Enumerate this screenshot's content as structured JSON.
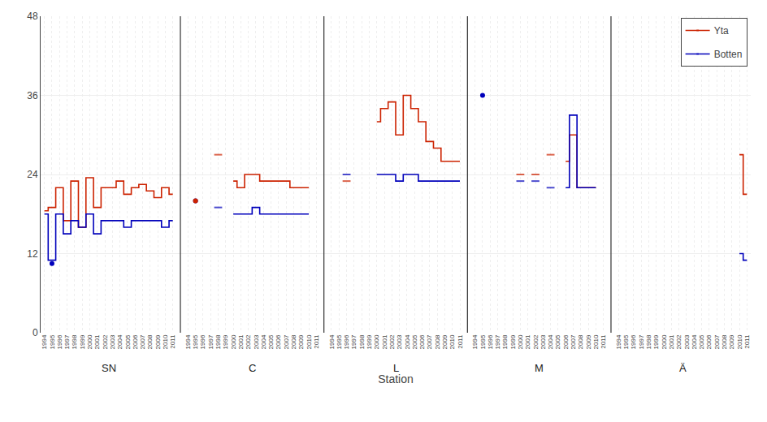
{
  "chart_data": {
    "type": "line",
    "xlabel": "Station",
    "groups": [
      "SN",
      "C",
      "L",
      "M",
      "Ä"
    ],
    "categories": [
      "1994",
      "1995",
      "1996",
      "1997",
      "1998",
      "1999",
      "2000",
      "2001",
      "2002",
      "2003",
      "2004",
      "2005",
      "2006",
      "2007",
      "2008",
      "2009",
      "2010",
      "2011",
      null,
      "1994",
      "1995",
      "1996",
      "1997",
      "1998",
      "1999",
      "2000",
      "2001",
      "2002",
      "2003",
      "2004",
      "2005",
      "2006",
      "2007",
      "2008",
      "2009",
      "2010",
      "2011",
      null,
      "1994",
      "1995",
      "1996",
      "1997",
      "1998",
      "1999",
      "2000",
      "2001",
      "2002",
      "2003",
      "2004",
      "2005",
      "2006",
      "2007",
      "2008",
      "2009",
      "2010",
      "2011",
      null,
      "1994",
      "1995",
      "1996",
      "1997",
      "1998",
      "1999",
      "2000",
      "2001",
      "2002",
      "2003",
      "2004",
      "2005",
      "2006",
      "2007",
      "2008",
      "2009",
      "2010",
      "2011",
      null,
      "1994",
      "1995",
      "1996",
      "1997",
      "1998",
      "1999",
      "2000",
      "2001",
      "2002",
      "2003",
      "2004",
      "2005",
      "2006",
      "2007",
      "2008",
      "2009",
      "2010",
      "2011"
    ],
    "series": [
      {
        "name": "Yta",
        "color": "#cc2200",
        "line_style": "step",
        "values": [
          18.5,
          19,
          22,
          17,
          23,
          16,
          23.5,
          19,
          22,
          22,
          23,
          21,
          22,
          22.5,
          21.5,
          20.5,
          22,
          21,
          null,
          null,
          null,
          null,
          null,
          27,
          null,
          23,
          22,
          24,
          24,
          23,
          23,
          23,
          23,
          22,
          22,
          22,
          null,
          null,
          null,
          null,
          23,
          null,
          null,
          null,
          32,
          34,
          35,
          30,
          36,
          34,
          32,
          29,
          28,
          26,
          26,
          26,
          null,
          null,
          null,
          null,
          null,
          null,
          null,
          24,
          null,
          24,
          null,
          27,
          null,
          26,
          30,
          22,
          22,
          22,
          null,
          null,
          null,
          null,
          null,
          null,
          null,
          null,
          null,
          null,
          null,
          null,
          null,
          null,
          null,
          null,
          null,
          null,
          27,
          21
        ]
      },
      {
        "name": "Botten",
        "color": "#0000bb",
        "line_style": "step",
        "values": [
          18,
          11,
          18,
          15,
          17,
          16,
          18,
          15,
          17,
          17,
          17,
          16,
          17,
          17,
          17,
          17,
          16,
          17,
          null,
          null,
          null,
          null,
          null,
          19,
          null,
          18,
          18,
          18,
          19,
          18,
          18,
          18,
          18,
          18,
          18,
          18,
          null,
          null,
          null,
          null,
          24,
          null,
          null,
          null,
          24,
          24,
          24,
          23,
          24,
          24,
          23,
          23,
          23,
          23,
          23,
          23,
          null,
          null,
          null,
          null,
          null,
          null,
          null,
          23,
          null,
          23,
          null,
          22,
          null,
          22,
          33,
          22,
          22,
          22,
          null,
          null,
          null,
          null,
          null,
          null,
          null,
          null,
          null,
          null,
          null,
          null,
          null,
          null,
          null,
          null,
          null,
          null,
          12,
          11
        ]
      },
      {
        "name": "Botten",
        "type": "scatter",
        "marker": "circle",
        "color": "#0000bb",
        "values": [
          null,
          10.5,
          null,
          null,
          null,
          null,
          null,
          null,
          null,
          null,
          null,
          null,
          null,
          null,
          null,
          null,
          null,
          null,
          null,
          null,
          20,
          null,
          null,
          null,
          null,
          null,
          null,
          null,
          null,
          null,
          null,
          null,
          null,
          null,
          null,
          null,
          null,
          null,
          null,
          null,
          null,
          null,
          null,
          null,
          null,
          null,
          null,
          null,
          null,
          null,
          null,
          null,
          null,
          null,
          null,
          null,
          null,
          null,
          36,
          null,
          null,
          null,
          null,
          null,
          null,
          null,
          null,
          null,
          null,
          null,
          null,
          null,
          null,
          null,
          null,
          null,
          null,
          null,
          null,
          null,
          null,
          null,
          null,
          null,
          null,
          null,
          null,
          null,
          null,
          null,
          null,
          null,
          null,
          null
        ]
      },
      {
        "name": "Yta",
        "type": "scatter",
        "marker": "circle",
        "color": "#cc2200",
        "values": [
          null,
          null,
          null,
          null,
          null,
          null,
          null,
          null,
          null,
          null,
          null,
          null,
          null,
          null,
          null,
          null,
          null,
          null,
          null,
          null,
          20,
          null,
          null,
          null,
          null,
          null,
          null,
          null,
          null,
          null,
          null,
          null,
          null,
          null,
          null,
          null,
          null,
          null,
          null,
          null,
          null,
          null,
          null,
          null,
          null,
          null,
          null,
          null,
          null,
          null,
          null,
          null,
          null,
          null,
          null,
          null,
          null,
          null,
          null,
          null,
          null,
          null,
          null,
          null,
          null,
          null,
          null,
          null,
          null,
          null,
          null,
          null,
          null,
          null,
          null,
          null,
          null,
          null,
          null,
          null,
          null,
          null,
          null,
          null,
          null,
          null,
          null,
          null,
          null,
          null,
          null,
          null,
          null,
          null
        ]
      }
    ],
    "ylim": [
      0,
      48
    ],
    "yticks": [
      0,
      12,
      24,
      36,
      48
    ],
    "grid": true,
    "legend": "upper right"
  }
}
